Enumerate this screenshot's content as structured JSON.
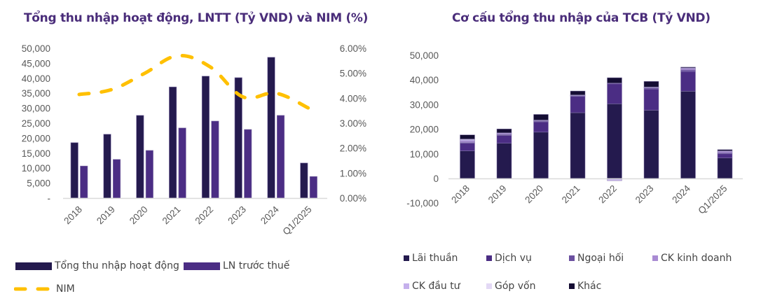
{
  "chart_data": [
    {
      "type": "bar",
      "title": "Tổng thu nhập hoạt động, LNTT (Tỷ VND) và NIM (%)",
      "xlabel": "",
      "ylabel": "",
      "categories": [
        "2018",
        "2019",
        "2020",
        "2021",
        "2022",
        "2023",
        "2024",
        "Q1/2025"
      ],
      "y_ticks": [
        "-",
        "5,000",
        "10,000",
        "15,000",
        "20,000",
        "25,000",
        "30,000",
        "35,000",
        "40,000",
        "45,000",
        "50,000"
      ],
      "ylim": [
        0,
        50000
      ],
      "y2_ticks": [
        "0.00%",
        "1.00%",
        "2.00%",
        "3.00%",
        "4.00%",
        "5.00%",
        "6.00%"
      ],
      "y2lim": [
        0,
        6
      ],
      "series": [
        {
          "name": "Tổng thu nhập hoạt động",
          "type": "bar",
          "axis": "left",
          "color": "#241a4e",
          "values": [
            18500,
            21300,
            27600,
            37100,
            40700,
            40200,
            47000,
            11700
          ]
        },
        {
          "name": "LN trước thuế",
          "type": "bar",
          "axis": "left",
          "color": "#4b2d84",
          "values": [
            10700,
            12900,
            15900,
            23400,
            25700,
            22900,
            27600,
            7200
          ]
        },
        {
          "name": "NIM",
          "type": "line",
          "style": "dashed",
          "axis": "right",
          "color": "#ffc000",
          "values": [
            4.15,
            4.35,
            5.0,
            5.7,
            5.25,
            4.05,
            4.2,
            3.6
          ]
        }
      ],
      "legend": [
        "Tổng thu nhập hoạt động",
        "LN trước thuế",
        "NIM"
      ],
      "legend_position": "bottom",
      "grid": false
    },
    {
      "type": "bar",
      "stacked": true,
      "title": "Cơ cấu tổng thu nhập của TCB (Tỷ VND)",
      "xlabel": "",
      "ylabel": "",
      "categories": [
        "2018",
        "2019",
        "2020",
        "2021",
        "2022",
        "2023",
        "2024",
        "Q1/2025"
      ],
      "y_ticks": [
        "-10,000",
        "0",
        "10,000",
        "20,000",
        "30,000",
        "40,000",
        "50,000"
      ],
      "ylim": [
        -10000,
        50000
      ],
      "series": [
        {
          "name": "Lãi thuần",
          "color": "#241a4e",
          "values": [
            11200,
            14300,
            18800,
            26700,
            30300,
            27700,
            35400,
            8300
          ]
        },
        {
          "name": "Dịch vụ",
          "color": "#4b2d84",
          "values": [
            3100,
            3200,
            4200,
            6600,
            8100,
            8600,
            8000,
            1700
          ]
        },
        {
          "name": "Ngoại hối",
          "color": "#6b50a0",
          "values": [
            300,
            300,
            300,
            300,
            300,
            400,
            600,
            400
          ]
        },
        {
          "name": "CK kinh doanh",
          "color": "#a98bd3",
          "values": [
            600,
            400,
            300,
            200,
            -300,
            300,
            600,
            500
          ]
        },
        {
          "name": "CK đầu tư",
          "color": "#c5b0ec",
          "values": [
            500,
            300,
            100,
            100,
            -600,
            100,
            300,
            300
          ]
        },
        {
          "name": "Góp vốn",
          "color": "#e3d9f5",
          "values": [
            300,
            0,
            0,
            0,
            0,
            0,
            0,
            0
          ]
        },
        {
          "name": "Khác",
          "color": "#140d33",
          "values": [
            1700,
            1600,
            2300,
            1600,
            2200,
            2300,
            300,
            500
          ]
        }
      ],
      "legend": [
        "Lãi thuần",
        "Dịch vụ",
        "Ngoại hối",
        "CK kinh doanh",
        "CK đầu tư",
        "Góp vốn",
        "Khác"
      ],
      "legend_position": "bottom",
      "grid": false
    }
  ]
}
